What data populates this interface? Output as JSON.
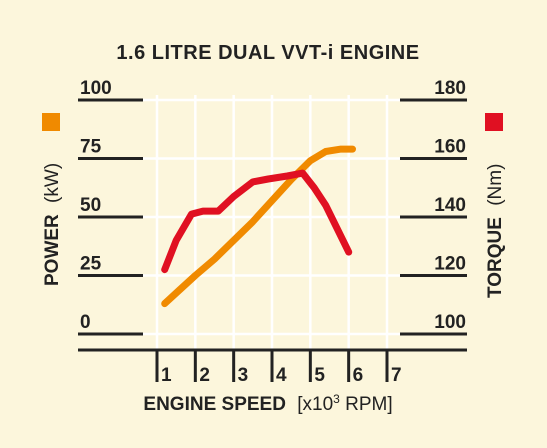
{
  "chart_data": {
    "type": "line",
    "title": "1.6 LITRE DUAL VVT-i ENGINE",
    "xlabel_bold": "ENGINE SPEED",
    "xlabel_unit_prefix": "[x10",
    "xlabel_unit_exp": "3",
    "xlabel_unit_suffix": " RPM]",
    "xticks": [
      1,
      2,
      3,
      4,
      5,
      6,
      7
    ],
    "xlim": [
      1,
      7
    ],
    "left_axis": {
      "label": "POWER",
      "unit": "(kW)",
      "ticks": [
        0,
        25,
        50,
        75,
        100
      ],
      "ylim": [
        0,
        100
      ],
      "legend_color": "#f08a00"
    },
    "right_axis": {
      "label": "TORQUE",
      "unit": "(Nm)",
      "ticks": [
        100,
        120,
        140,
        160,
        180
      ],
      "ylim": [
        100,
        180
      ],
      "legend_color": "#e01022"
    },
    "series": [
      {
        "axis": "left",
        "color": "#f08a00",
        "x": [
          1.2,
          1.6,
          2.0,
          2.5,
          3.0,
          3.5,
          4.0,
          4.5,
          5.0,
          5.4,
          5.8,
          6.1
        ],
        "values": [
          13,
          19,
          25,
          32,
          40,
          48,
          57,
          66,
          74,
          78,
          79,
          79
        ]
      },
      {
        "axis": "right",
        "color": "#e01022",
        "x": [
          1.2,
          1.5,
          1.9,
          2.2,
          2.6,
          3.0,
          3.5,
          3.9,
          4.4,
          4.8,
          5.1,
          5.4,
          5.7,
          6.0
        ],
        "values": [
          122,
          132,
          141,
          142,
          142,
          147,
          152,
          153,
          154,
          155,
          150,
          144,
          136,
          128
        ]
      }
    ]
  }
}
